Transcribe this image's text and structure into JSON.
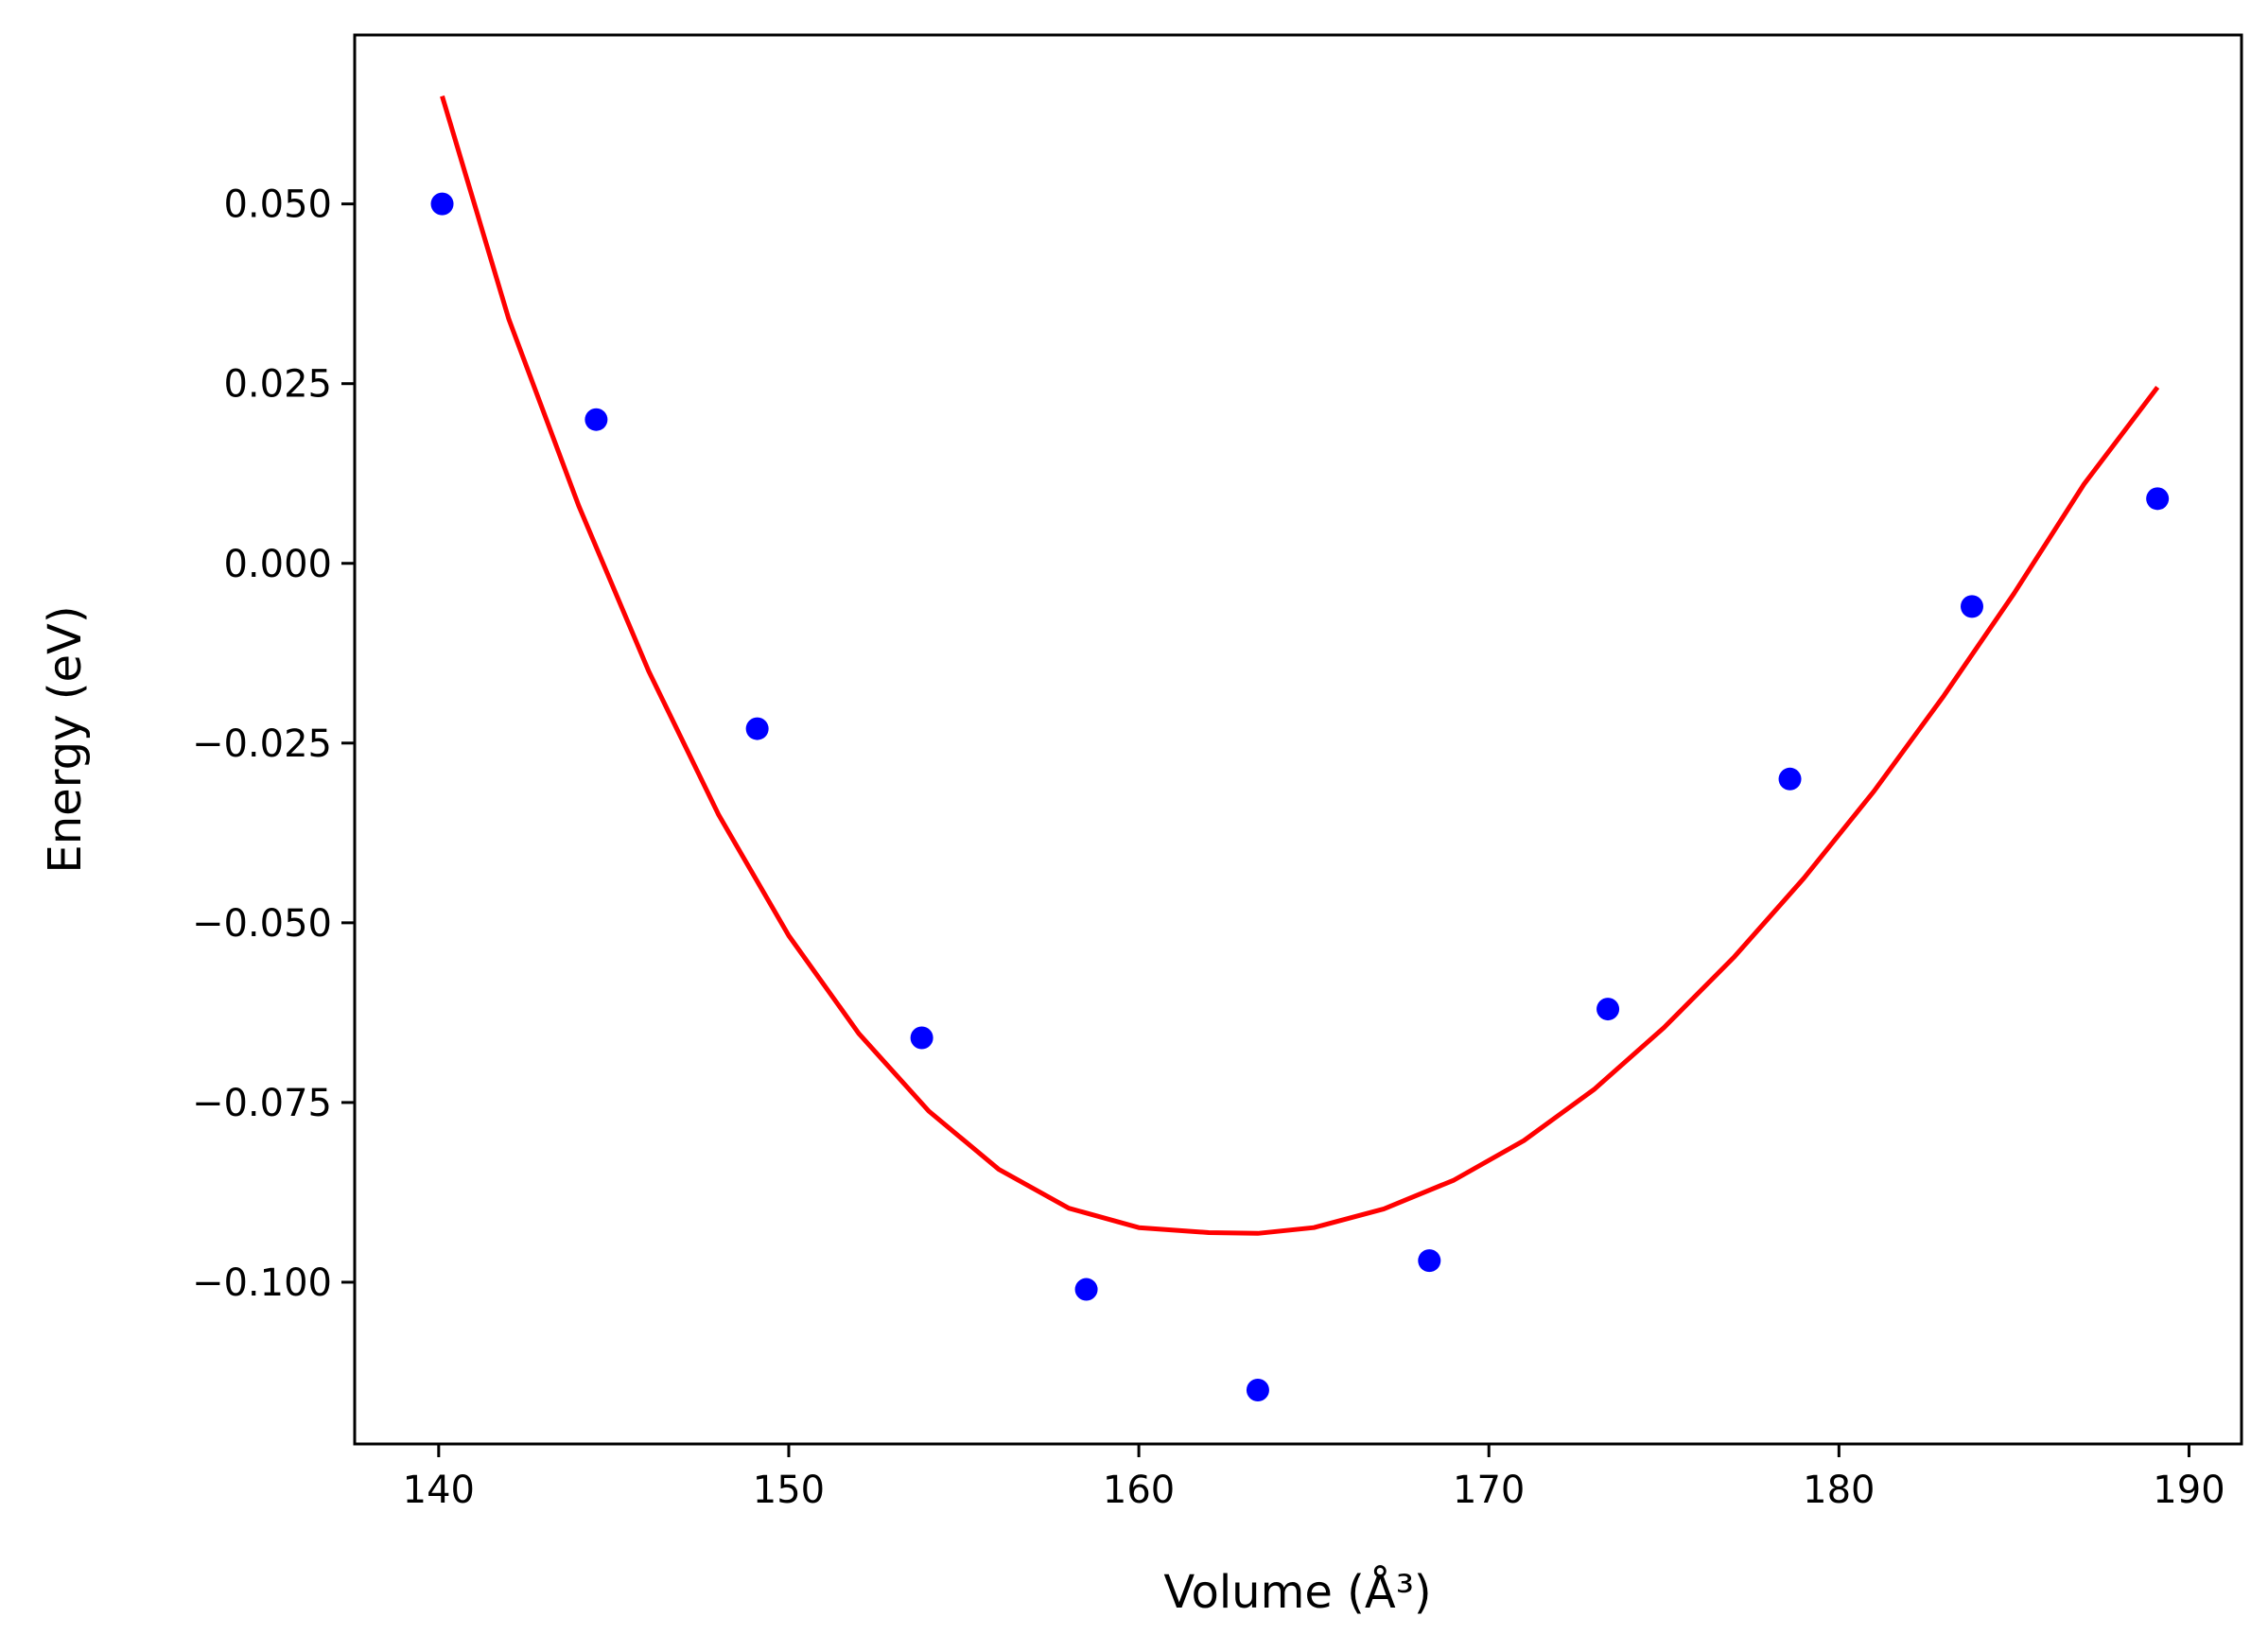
{
  "chart_data": {
    "type": "scatter",
    "xlabel": "Volume (Å³)",
    "ylabel": "Energy (eV)",
    "xlim": [
      137.6,
      191.5
    ],
    "ylim": [
      -0.1225,
      0.0735
    ],
    "xticks": [
      140,
      150,
      160,
      170,
      180,
      190
    ],
    "xtick_labels": [
      "140",
      "150",
      "160",
      "170",
      "180",
      "190"
    ],
    "yticks": [
      0.05,
      0.025,
      0.0,
      -0.025,
      -0.05,
      -0.075,
      -0.1
    ],
    "ytick_labels": [
      "0.050",
      "0.025",
      "0.000",
      "−0.025",
      "−0.050",
      "−0.075",
      "−0.100"
    ],
    "series": [
      {
        "type": "scatter",
        "color": "#0000ff",
        "points": [
          {
            "x": 140.1,
            "y": 0.05
          },
          {
            "x": 144.5,
            "y": 0.02
          },
          {
            "x": 149.1,
            "y": -0.023
          },
          {
            "x": 153.8,
            "y": -0.066
          },
          {
            "x": 158.5,
            "y": -0.101
          },
          {
            "x": 163.4,
            "y": -0.115
          },
          {
            "x": 168.3,
            "y": -0.097
          },
          {
            "x": 173.4,
            "y": -0.062
          },
          {
            "x": 178.6,
            "y": -0.03
          },
          {
            "x": 183.8,
            "y": -0.006
          },
          {
            "x": 189.1,
            "y": 0.009
          }
        ]
      },
      {
        "type": "line",
        "color": "#ff0000",
        "points": [
          {
            "x": 140.1,
            "y": 0.065
          },
          {
            "x": 142.0,
            "y": 0.034
          },
          {
            "x": 144.0,
            "y": 0.008
          },
          {
            "x": 146.0,
            "y": -0.015
          },
          {
            "x": 148.0,
            "y": -0.035
          },
          {
            "x": 150.0,
            "y": -0.0518
          },
          {
            "x": 152.0,
            "y": -0.0654
          },
          {
            "x": 154.0,
            "y": -0.0762
          },
          {
            "x": 156.0,
            "y": -0.0843
          },
          {
            "x": 158.0,
            "y": -0.0897
          },
          {
            "x": 160.0,
            "y": -0.0924
          },
          {
            "x": 162.0,
            "y": -0.0931
          },
          {
            "x": 163.4,
            "y": -0.0932
          },
          {
            "x": 165.0,
            "y": -0.0924
          },
          {
            "x": 167.0,
            "y": -0.0898
          },
          {
            "x": 169.0,
            "y": -0.0858
          },
          {
            "x": 171.0,
            "y": -0.0803
          },
          {
            "x": 173.0,
            "y": -0.0732
          },
          {
            "x": 175.0,
            "y": -0.0646
          },
          {
            "x": 177.0,
            "y": -0.0548
          },
          {
            "x": 179.0,
            "y": -0.0438
          },
          {
            "x": 181.0,
            "y": -0.0317
          },
          {
            "x": 183.0,
            "y": -0.0184
          },
          {
            "x": 185.0,
            "y": -0.0042
          },
          {
            "x": 187.0,
            "y": 0.011
          },
          {
            "x": 189.1,
            "y": 0.0245
          }
        ]
      }
    ]
  }
}
